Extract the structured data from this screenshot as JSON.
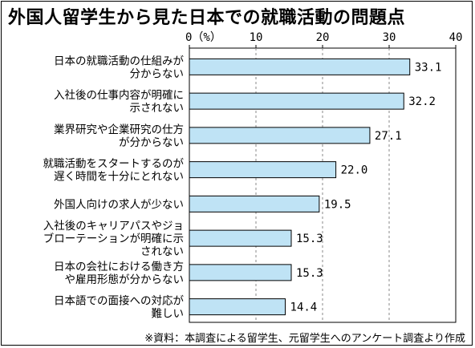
{
  "chart_data": {
    "type": "bar",
    "orientation": "horizontal",
    "title": "外国人留学生から見た日本での就職活動の問題点",
    "unit_label": "0（%）",
    "xlim": [
      0,
      40
    ],
    "ticks": [
      0,
      10,
      20,
      30,
      40
    ],
    "categories": [
      [
        "日本の就職活動の仕組みが",
        "分からない"
      ],
      [
        "入社後の仕事内容が明確に",
        "示されない"
      ],
      [
        "業界研究や企業研究の仕方",
        "が分からない"
      ],
      [
        "就職活動をスタートするのが",
        "遅く時間を十分にとれない"
      ],
      [
        "外国人向けの求人が少ない"
      ],
      [
        "入社後のキャリアパスやジョ",
        "ブローテーションが明確に示",
        "されない"
      ],
      [
        "日本の会社における働き方",
        "や雇用形態が分からない"
      ],
      [
        "日本語での面接への対応が",
        "難しい"
      ]
    ],
    "values": [
      33.1,
      32.2,
      27.1,
      22.0,
      19.5,
      15.3,
      15.3,
      14.4
    ],
    "value_labels": [
      "33.1",
      "32.2",
      "27.1",
      "22.0",
      "19.5",
      "15.3",
      "15.3",
      "14.4"
    ],
    "bar_color": "#bfe3f5",
    "source": "※資料：本調査による留学生、元留学生へのアンケート調査より作成"
  }
}
